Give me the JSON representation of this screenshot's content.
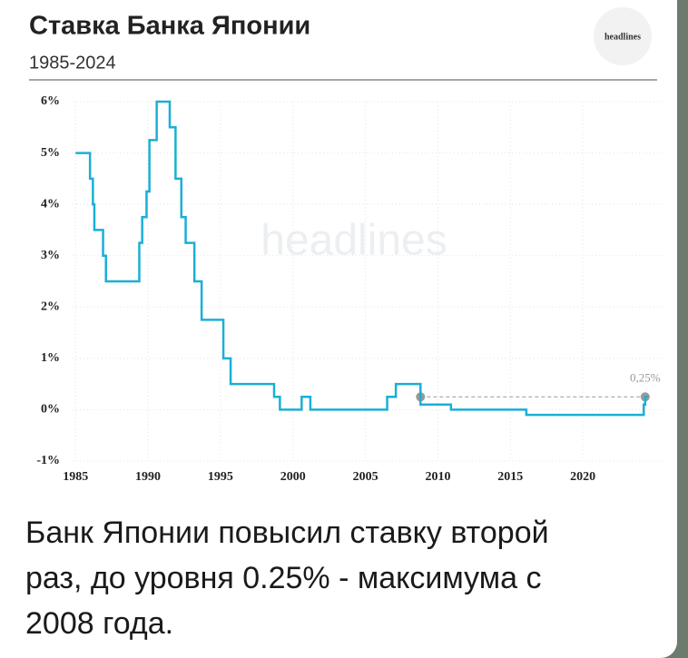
{
  "chart_data": {
    "type": "step",
    "title": "Ставка Банка Японии",
    "subtitle": "1985-2024",
    "logo": "headlines",
    "watermark": "headlines",
    "x": [
      1985,
      1986,
      1986.2,
      1986.3,
      1986.9,
      1987.1,
      1989.4,
      1989.6,
      1989.9,
      1990.1,
      1990.6,
      1991.5,
      1991.9,
      1992.3,
      1992.6,
      1993.2,
      1993.7,
      1995.2,
      1995.7,
      1998.7,
      1999.1,
      2000.6,
      2001.2,
      2006.5,
      2007.1,
      2008.8,
      2010.9,
      2016.1,
      2024.2,
      2024.3,
      2024.5
    ],
    "series": [
      {
        "color": "#1aafd6",
        "values": [
          5,
          4.5,
          4,
          3.5,
          3,
          2.5,
          3.25,
          3.75,
          4.25,
          5.25,
          6,
          5.5,
          4.5,
          3.75,
          3.25,
          2.5,
          1.75,
          1,
          0.5,
          0.25,
          0,
          0.25,
          0,
          0.25,
          0.5,
          0.1,
          0,
          -0.1,
          0.1,
          0.25,
          0.25
        ]
      }
    ],
    "annotation": {
      "text": "0,25%",
      "value": 0.25,
      "x": [
        2008.8,
        2024.3
      ],
      "color": "#999999"
    },
    "xlim": [
      1984.8,
      2025.5
    ],
    "ylim": [
      -1,
      6
    ],
    "xticks": [
      1985,
      1990,
      1995,
      2000,
      2005,
      2010,
      2015,
      2020
    ],
    "yticks": [
      {
        "value": -1,
        "label": "-1%"
      },
      {
        "value": 0,
        "label": "0%"
      },
      {
        "value": 1,
        "label": "1%"
      },
      {
        "value": 2,
        "label": "2%"
      },
      {
        "value": 3,
        "label": "3%"
      },
      {
        "value": 4,
        "label": "4%"
      },
      {
        "value": 5,
        "label": "5%"
      },
      {
        "value": 6,
        "label": "6%"
      }
    ],
    "grid": true
  },
  "caption": "Банк Японии повысил ставку второй раз, до уровня 0.25% - максимума с 2008 года."
}
